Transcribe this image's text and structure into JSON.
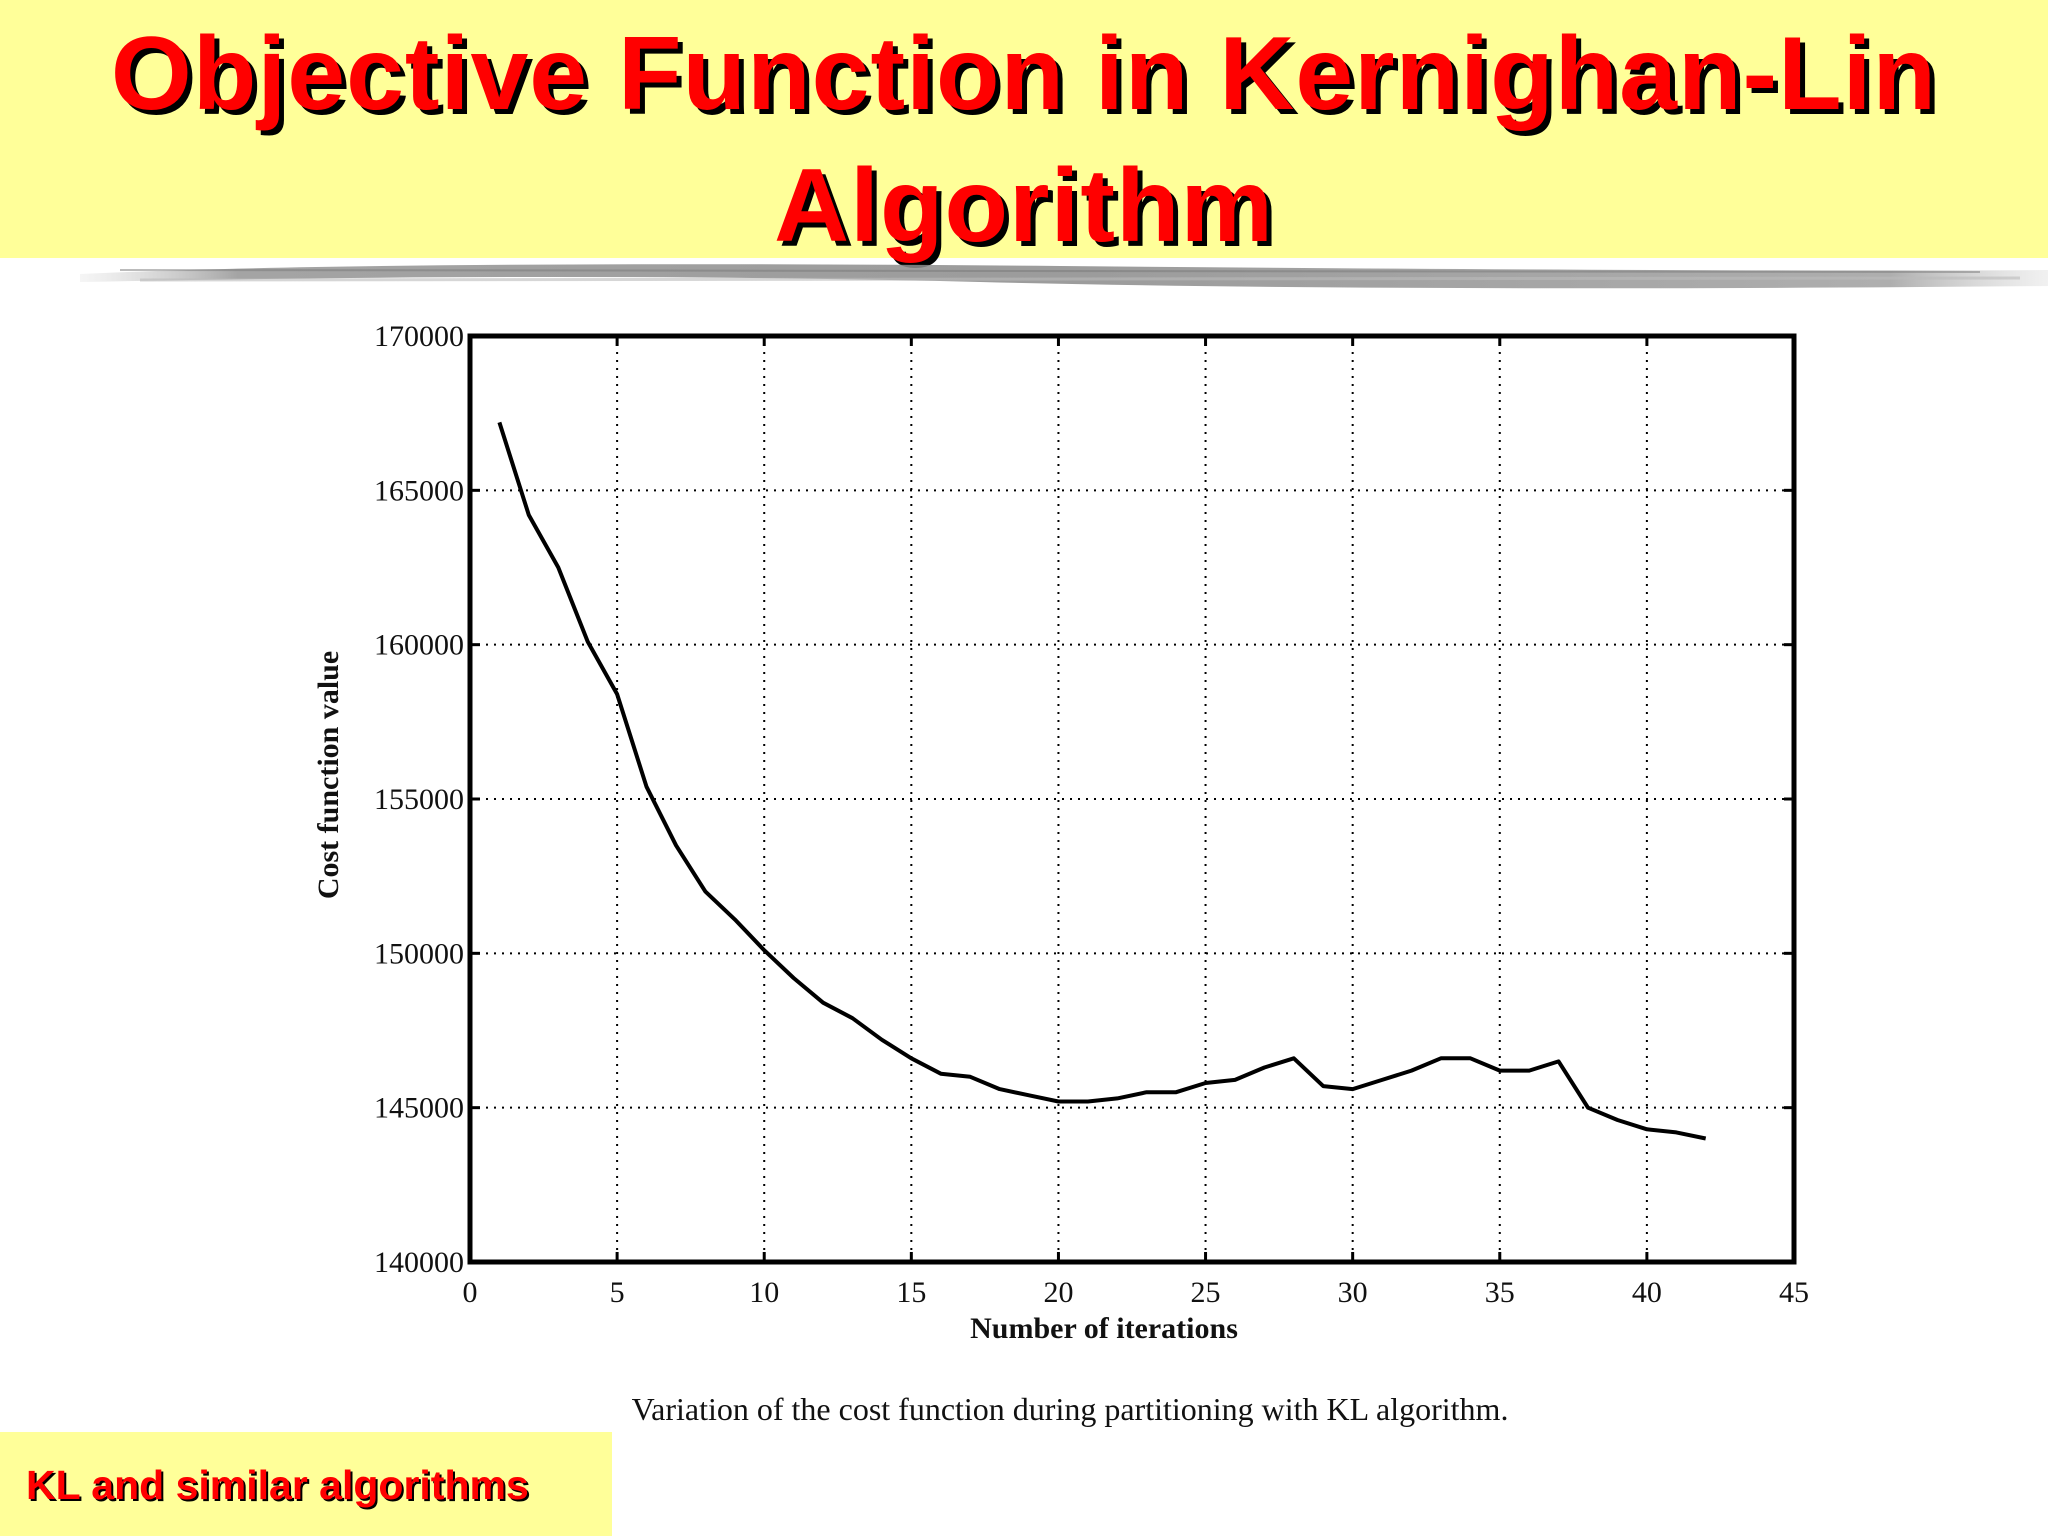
{
  "slide": {
    "title": "Objective Function in Kernighan-Lin Algorithm",
    "footer": "KL and similar algorithms",
    "colors": {
      "title": "#ff0000",
      "band": "#ffff99",
      "title_shadow": "#000000"
    }
  },
  "chart_data": {
    "type": "line",
    "title": "",
    "caption": "Variation of the cost function during partitioning with KL algorithm.",
    "xlabel": "Number of iterations",
    "ylabel": "Cost function value",
    "xlim": [
      0,
      45
    ],
    "ylim": [
      140000,
      170000
    ],
    "xticks": [
      0,
      5,
      10,
      15,
      20,
      25,
      30,
      35,
      40,
      45
    ],
    "yticks": [
      140000,
      145000,
      150000,
      155000,
      160000,
      165000,
      170000
    ],
    "grid": true,
    "series": [
      {
        "x": [
          1,
          2,
          3,
          4,
          5,
          6,
          7,
          8,
          9,
          10,
          11,
          12,
          13,
          14,
          15,
          16,
          17,
          18,
          19,
          20,
          21,
          22,
          23,
          24,
          25,
          26,
          27,
          28,
          29,
          30,
          31,
          32,
          33,
          34,
          35,
          36,
          37,
          38,
          39,
          40,
          41,
          42
        ],
        "y": [
          167200,
          164200,
          162500,
          160100,
          158400,
          155400,
          153500,
          152000,
          151100,
          150100,
          149200,
          148400,
          147900,
          147200,
          146600,
          146100,
          146000,
          145600,
          145400,
          145200,
          145200,
          145300,
          145500,
          145500,
          145800,
          145900,
          146300,
          146600,
          145700,
          145600,
          145900,
          146200,
          146600,
          146600,
          146200,
          146200,
          146500,
          145000,
          144600,
          144300,
          144200,
          144000
        ]
      }
    ]
  }
}
